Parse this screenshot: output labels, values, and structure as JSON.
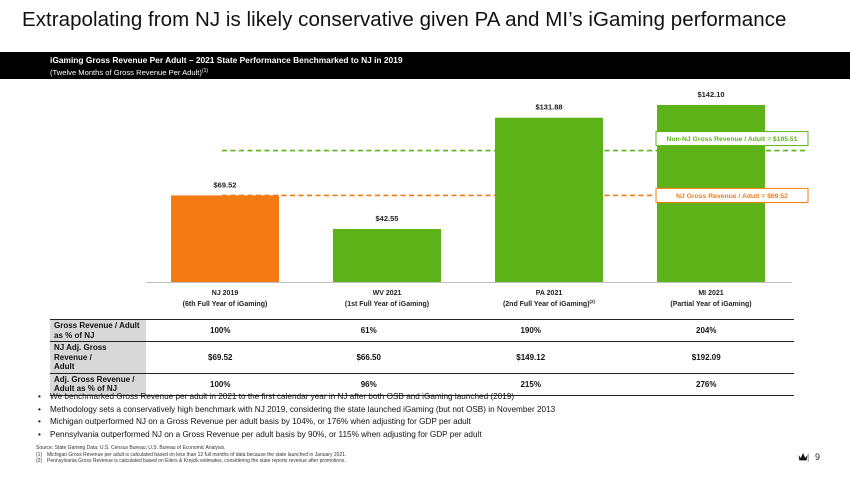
{
  "page": {
    "title": "Extrapolating from NJ is likely conservative given PA and MI’s iGaming performance",
    "subtitle_main": "iGaming Gross Revenue Per Adult – 2021 State Performance Benchmarked to NJ in 2019",
    "subtitle_sub": "(Twelve Months of Gross Revenue Per Adult)",
    "subtitle_sup": "(1)",
    "page_number": "9",
    "page_separator": "|"
  },
  "colors": {
    "nj_bar": "#f47b13",
    "other_bar": "#5db217",
    "reference_line": "#f47b13",
    "header_bg": "#000000",
    "row_head_bg": "#d8d8d8"
  },
  "chart_data": {
    "type": "bar",
    "title": "iGaming Gross Revenue Per Adult – 2021 State Performance Benchmarked to NJ in 2019",
    "categories": [
      {
        "line1": "NJ 2019",
        "line2": "(6th Full Year of iGaming)",
        "sup": ""
      },
      {
        "line1": "WV 2021",
        "line2": "(1st Full Year of iGaming)",
        "sup": ""
      },
      {
        "line1": "PA 2021",
        "line2": "(2nd Full Year of iGaming)",
        "sup": "(2)"
      },
      {
        "line1": "MI 2021",
        "line2": "(Partial Year of iGaming)",
        "sup": ""
      }
    ],
    "values": [
      69.52,
      42.55,
      131.88,
      142.1
    ],
    "value_labels": [
      "$69.52",
      "$42.55",
      "$131.88",
      "$142.10"
    ],
    "bar_colors": [
      "#f47b13",
      "#5db217",
      "#5db217",
      "#5db217"
    ],
    "ylim": [
      0,
      142.1
    ],
    "grid": false,
    "reference_lines": [
      {
        "value": 105.51,
        "label": "Non-NJ Gross Revenue / Adult = $105.51",
        "color": "#5db217"
      },
      {
        "value": 69.52,
        "label": "NJ Gross Revenue / Adult = $69.52",
        "color": "#f47b13"
      }
    ]
  },
  "table": {
    "rows": [
      {
        "label_line1": "Gross Revenue / Adult",
        "label_line2": "as % of NJ",
        "values": [
          "100%",
          "61%",
          "190%",
          "204%"
        ]
      },
      {
        "label_line1": "NJ Adj. Gross Revenue /",
        "label_line2": "Adult",
        "values": [
          "$69.52",
          "$66.50",
          "$149.12",
          "$192.09"
        ]
      },
      {
        "label_line1": "Adj. Gross Revenue /",
        "label_line2": "Adult as % of NJ",
        "values": [
          "100%",
          "96%",
          "215%",
          "276%"
        ]
      }
    ]
  },
  "bullets": {
    "marker": "•",
    "items": [
      "We benchmarked Gross Revenue per adult in 2021 to the first calendar year in NJ after both OSB and iGaming launched (2019)",
      "Methodology sets a conservatively high benchmark with NJ 2019, considering the state launched iGaming (but not OSB) in November 2013",
      "Michigan outperformed NJ on a Gross Revenue per adult basis by 104%, or 176% when adjusting for GDP per adult",
      "Pennsylvania outperformed NJ on a Gross Revenue per adult basis by 90%, or 115% when adjusting for GDP per adult"
    ]
  },
  "footnotes": {
    "source": "Source: State Gaming Data; U.S. Census Bureau; U.S. Bureau of Economic Analysis.",
    "notes": [
      {
        "num": "(1)",
        "text": "Michigan Gross Revenue per adult is calculated based on less than 12 full months of data because the state launched in January 2021."
      },
      {
        "num": "(2)",
        "text": "Pennsylvania Gross Revenue is calculated based on Eilers & Krejcik estimates, considering the state reports revenue after promotions."
      }
    ]
  }
}
